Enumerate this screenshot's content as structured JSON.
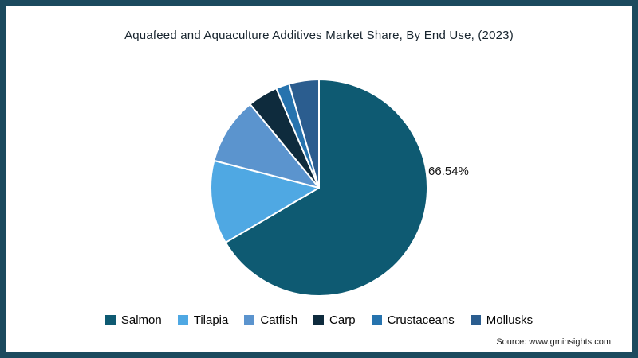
{
  "title": "Aquafeed and Aquaculture Additives Market Share, By End Use, (2023)",
  "source": "Source: www.gminsights.com",
  "frame_color": "#1b4a5e",
  "chart_data": {
    "type": "pie",
    "title": "Aquafeed and Aquaculture Additives Market Share, By End Use, (2023)",
    "categories": [
      "Salmon",
      "Tilapia",
      "Catfish",
      "Carp",
      "Crustaceans",
      "Mollusks"
    ],
    "values": [
      66.54,
      12.5,
      10,
      4.5,
      2,
      4.46
    ],
    "colors": [
      "#0e5a72",
      "#4fa8e3",
      "#5b94ce",
      "#0e2b3d",
      "#2673ae",
      "#2b5d8f"
    ],
    "data_labels": [
      "66.54%",
      "",
      "",
      "",
      "",
      ""
    ],
    "start_angle_deg": 0,
    "direction": "clockwise",
    "legend_position": "bottom",
    "slice_stroke": "#ffffff"
  }
}
